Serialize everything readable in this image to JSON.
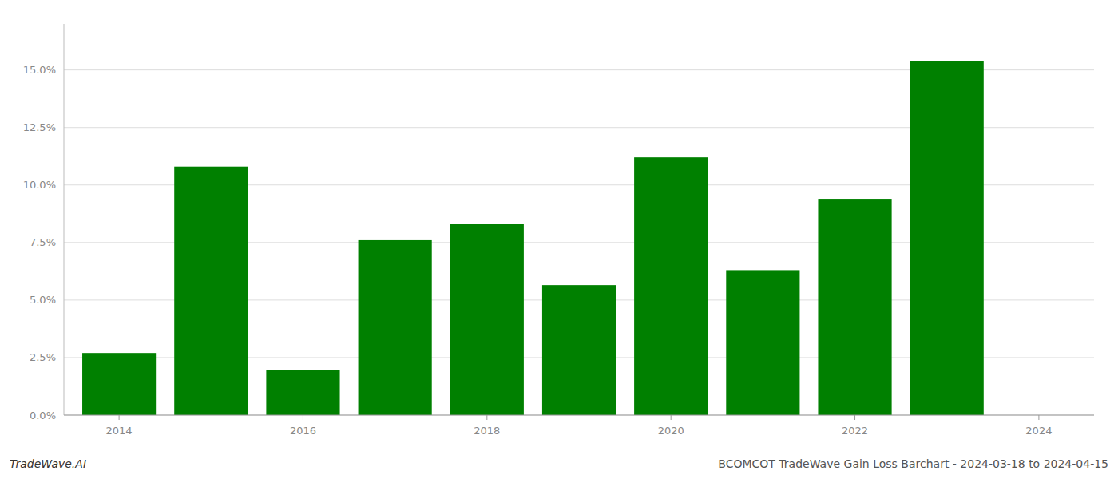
{
  "chart_data": {
    "type": "bar",
    "x": [
      2014,
      2015,
      2016,
      2017,
      2018,
      2019,
      2020,
      2021,
      2022,
      2023
    ],
    "values": [
      0.027,
      0.108,
      0.0195,
      0.076,
      0.083,
      0.0565,
      0.112,
      0.063,
      0.094,
      0.154
    ],
    "color": "#008000",
    "xlim": [
      2013.4,
      2024.6
    ],
    "xticks": [
      2014,
      2016,
      2018,
      2020,
      2022,
      2024
    ],
    "ylim": [
      0,
      0.17
    ],
    "yticks": [
      {
        "value": 0.0,
        "label": "0.0%"
      },
      {
        "value": 0.025,
        "label": "2.5%"
      },
      {
        "value": 0.05,
        "label": "5.0%"
      },
      {
        "value": 0.075,
        "label": "7.5%"
      },
      {
        "value": 0.1,
        "label": "10.0%"
      },
      {
        "value": 0.125,
        "label": "12.5%"
      },
      {
        "value": 0.15,
        "label": "15.0%"
      }
    ],
    "grid": true,
    "annotations": [
      "TradeWave.AI",
      "BCOMCOT TradeWave Gain Loss Barchart - 2024-03-18 to 2024-04-15"
    ]
  }
}
